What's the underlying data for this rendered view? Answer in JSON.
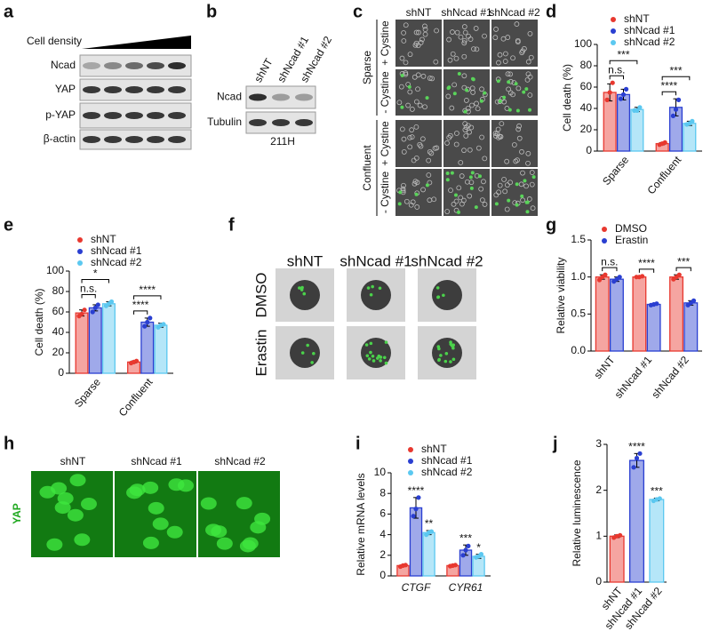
{
  "panel_labels": [
    "a",
    "b",
    "c",
    "d",
    "e",
    "f",
    "g",
    "h",
    "i",
    "j"
  ],
  "blot_a": {
    "title": "Cell density",
    "rows": [
      "Ncad",
      "YAP",
      "p-YAP",
      "β-actin"
    ]
  },
  "blot_b": {
    "columns": [
      "shNT",
      "shNcad #1",
      "shNcad #2"
    ],
    "rows": [
      "Ncad",
      "Tubulin"
    ],
    "caption": "211H"
  },
  "images_c": {
    "columns": [
      "shNT",
      "shNcad #1",
      "shNcad #2"
    ],
    "groups": [
      "Sparse",
      "Confluent"
    ],
    "conditions": [
      "+ Cystine",
      "- Cystine"
    ]
  },
  "images_f": {
    "columns": [
      "shNT",
      "shNcad #1",
      "shNcad #2"
    ],
    "rows": [
      "DMSO",
      "Erastin"
    ]
  },
  "images_h": {
    "columns": [
      "shNT",
      "shNcad #1",
      "shNcad #2"
    ],
    "stain": "YAP"
  },
  "chart_data": [
    {
      "type": "bar",
      "label": "d",
      "ylabel": "Cell death (%)",
      "categories": [
        "Sparse",
        "Confluent"
      ],
      "ylim": [
        0,
        100
      ],
      "yticks": [
        0,
        20,
        40,
        60,
        80,
        100
      ],
      "series": [
        {
          "name": "shNT",
          "color": "#e8382f",
          "values": [
            55,
            7
          ],
          "errors": [
            8,
            1
          ],
          "points": [
            [
              48,
              55,
              64
            ],
            [
              6,
              7,
              8
            ]
          ]
        },
        {
          "name": "shNcad #1",
          "color": "#2a3fd1",
          "values": [
            53,
            41
          ],
          "errors": [
            5,
            8
          ],
          "points": [
            [
              49,
              53,
              58
            ],
            [
              33,
              39,
              48
            ]
          ]
        },
        {
          "name": "shNcad #2",
          "color": "#5bc8f0",
          "values": [
            39,
            26
          ],
          "errors": [
            2,
            2
          ],
          "points": [
            [
              38,
              38,
              41
            ],
            [
              25,
              26,
              28
            ]
          ]
        }
      ],
      "annotations": [
        {
          "text": "n.s.",
          "category": 0,
          "series": [
            0,
            1
          ]
        },
        {
          "text": "***",
          "category": 0,
          "series": [
            0,
            2
          ]
        },
        {
          "text": "****",
          "category": 1,
          "series": [
            0,
            1
          ]
        },
        {
          "text": "***",
          "category": 1,
          "series": [
            0,
            2
          ]
        }
      ]
    },
    {
      "type": "bar",
      "label": "e",
      "ylabel": "Cell death (%)",
      "categories": [
        "Sparse",
        "Confluent"
      ],
      "ylim": [
        0,
        100
      ],
      "yticks": [
        0,
        20,
        40,
        60,
        80,
        100
      ],
      "series": [
        {
          "name": "shNT",
          "color": "#e8382f",
          "values": [
            59,
            11
          ],
          "errors": [
            3,
            1
          ],
          "points": [
            [
              56,
              58,
              62
            ],
            [
              10,
              11,
              12
            ]
          ]
        },
        {
          "name": "shNcad #1",
          "color": "#2a3fd1",
          "values": [
            64,
            50
          ],
          "errors": [
            3,
            4
          ],
          "points": [
            [
              60,
              64,
              67
            ],
            [
              46,
              50,
              54
            ]
          ]
        },
        {
          "name": "shNcad #2",
          "color": "#5bc8f0",
          "values": [
            68,
            47
          ],
          "errors": [
            2,
            2
          ],
          "points": [
            [
              66,
              68,
              70
            ],
            [
              45,
              47,
              48
            ]
          ]
        }
      ],
      "annotations": [
        {
          "text": "n.s.",
          "category": 0,
          "series": [
            0,
            1
          ]
        },
        {
          "text": "*",
          "category": 0,
          "series": [
            0,
            2
          ]
        },
        {
          "text": "****",
          "category": 1,
          "series": [
            0,
            1
          ]
        },
        {
          "text": "****",
          "category": 1,
          "series": [
            0,
            2
          ]
        }
      ]
    },
    {
      "type": "bar",
      "label": "g",
      "ylabel": "Relative viability",
      "categories": [
        "shNT",
        "shNcad #1",
        "shNcad #2"
      ],
      "ylim": [
        0,
        1.5
      ],
      "yticks": [
        {
          "value": 0,
          "label": "0.0"
        },
        0.5,
        {
          "value": 1,
          "label": "1.0"
        },
        1.5
      ],
      "series": [
        {
          "name": "DMSO",
          "color": "#e8382f",
          "values": [
            1.0,
            1.0,
            1.0
          ],
          "errors": [
            0.03,
            0.01,
            0.03
          ],
          "points": [
            [
              0.96,
              1.0,
              1.03
            ],
            [
              1.0,
              1.0,
              1.01
            ],
            [
              0.97,
              1.0,
              1.03
            ]
          ]
        },
        {
          "name": "Erastin",
          "color": "#2a3fd1",
          "values": [
            0.97,
            0.63,
            0.65
          ],
          "errors": [
            0.03,
            0.01,
            0.03
          ],
          "points": [
            [
              0.94,
              0.97,
              1.0
            ],
            [
              0.62,
              0.63,
              0.64
            ],
            [
              0.62,
              0.65,
              0.68
            ]
          ]
        }
      ],
      "annotations": [
        {
          "text": "n.s.",
          "category": 0,
          "series": [
            0,
            1
          ]
        },
        {
          "text": "****",
          "category": 1,
          "series": [
            0,
            1
          ]
        },
        {
          "text": "***",
          "category": 2,
          "series": [
            0,
            1
          ]
        }
      ]
    },
    {
      "type": "bar",
      "label": "i",
      "ylabel": "Relative mRNA levels",
      "categories": [
        "CTGF",
        "CYR61"
      ],
      "ylim": [
        0,
        10
      ],
      "yticks": [
        0,
        2,
        4,
        6,
        8,
        10
      ],
      "series": [
        {
          "name": "shNT",
          "color": "#e8382f",
          "values": [
            1.0,
            1.0
          ],
          "errors": [
            0.08,
            0.05
          ],
          "points": [
            [
              0.9,
              1.0,
              1.05
            ],
            [
              0.95,
              1.0,
              1.05
            ]
          ]
        },
        {
          "name": "shNcad #1",
          "color": "#2a3fd1",
          "values": [
            6.6,
            2.5
          ],
          "errors": [
            1.0,
            0.5
          ],
          "points": [
            [
              5.8,
              6.5,
              7.6
            ],
            [
              2.0,
              2.5,
              2.9
            ]
          ]
        },
        {
          "name": "shNcad #2",
          "color": "#5bc8f0",
          "values": [
            4.2,
            1.9
          ],
          "errors": [
            0.2,
            0.2
          ],
          "points": [
            [
              4.0,
              4.2,
              4.3
            ],
            [
              1.8,
              1.9,
              2.1
            ]
          ]
        }
      ],
      "annotations": [
        {
          "text": "****",
          "category": 0,
          "series": [
            1
          ]
        },
        {
          "text": "**",
          "category": 0,
          "series": [
            2
          ]
        },
        {
          "text": "***",
          "category": 1,
          "series": [
            1
          ]
        },
        {
          "text": "*",
          "category": 1,
          "series": [
            2
          ]
        }
      ]
    },
    {
      "type": "bar",
      "label": "j",
      "ylabel": "Relative luminescence",
      "categories": [
        "shNT",
        "shNcad #1",
        "shNcad #2"
      ],
      "ylim": [
        0,
        3
      ],
      "yticks": [
        0,
        1,
        2,
        3
      ],
      "series": [
        {
          "colors": [
            "#e8382f",
            "#2a3fd1",
            "#5bc8f0"
          ],
          "values": [
            1.0,
            2.65,
            1.8
          ],
          "errors": [
            0.03,
            0.15,
            0.03
          ],
          "points": [
            [
              0.97,
              1.0,
              1.02
            ],
            [
              2.5,
              2.7,
              2.8
            ],
            [
              1.77,
              1.8,
              1.82
            ]
          ]
        }
      ],
      "annotations": [
        {
          "text": "****",
          "category": 1,
          "series": [
            0
          ]
        },
        {
          "text": "***",
          "category": 2,
          "series": [
            0
          ]
        }
      ]
    }
  ]
}
